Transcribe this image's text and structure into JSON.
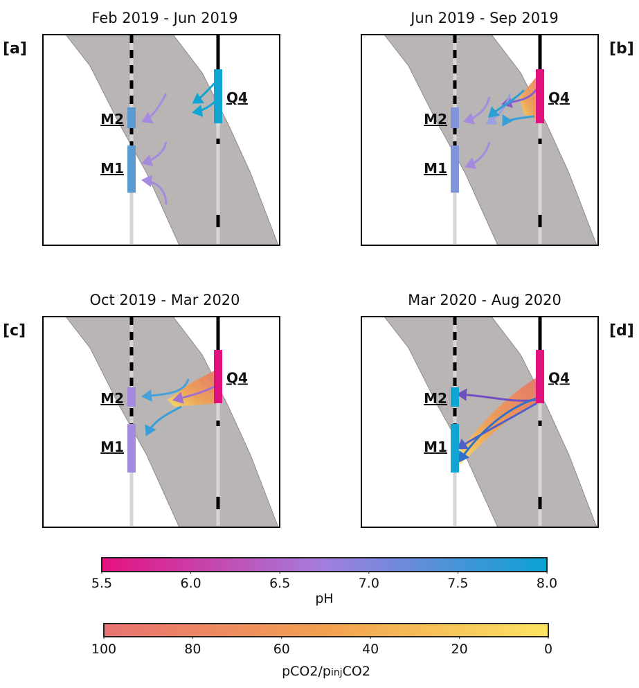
{
  "panels": [
    {
      "tag": "[a]",
      "title": "Feb 2019 - Jun 2019",
      "wells": [
        {
          "label": "M2",
          "color": "#5b9bd2"
        },
        {
          "label": "M1",
          "color": "#5b9bd2"
        },
        {
          "label": "Q4",
          "color": "#11a5d3"
        }
      ]
    },
    {
      "tag": "[b]",
      "title": "Jun 2019 - Sep 2019",
      "wells": [
        {
          "label": "M2",
          "color": "#7f95d8"
        },
        {
          "label": "M1",
          "color": "#7f95d8"
        },
        {
          "label": "Q4",
          "color": "#e0117f"
        }
      ]
    },
    {
      "tag": "[c]",
      "title": "Oct 2019 - Mar 2020",
      "wells": [
        {
          "label": "M2",
          "color": "#a58ade"
        },
        {
          "label": "M1",
          "color": "#a58ade"
        },
        {
          "label": "Q4",
          "color": "#e0117f"
        }
      ]
    },
    {
      "tag": "[d]",
      "title": "Mar 2020 - Aug 2020",
      "wells": [
        {
          "label": "M2",
          "color": "#11a5d3"
        },
        {
          "label": "M1",
          "color": "#11a5d3"
        },
        {
          "label": "Q4",
          "color": "#e0117f"
        }
      ]
    }
  ],
  "colorbars": [
    {
      "label": "pH",
      "lim": [
        5.5,
        8
      ],
      "ticks": [
        5.5,
        {
          "value": 6,
          "label": "6.0"
        },
        6.5,
        {
          "value": 7,
          "label": "7.0"
        },
        7.5,
        {
          "value": 8,
          "label": "8.0"
        }
      ],
      "colors": [
        "#e6117f",
        "#a37ede",
        "#0aa2d2"
      ]
    },
    {
      "label_parts": [
        "pCO2/p",
        "inj",
        "CO2"
      ],
      "lim": [
        100,
        0
      ],
      "ticks": [
        100,
        80,
        60,
        40,
        20,
        0
      ],
      "colors": [
        "#e87272",
        "#f2a050",
        "#fde462"
      ]
    }
  ]
}
